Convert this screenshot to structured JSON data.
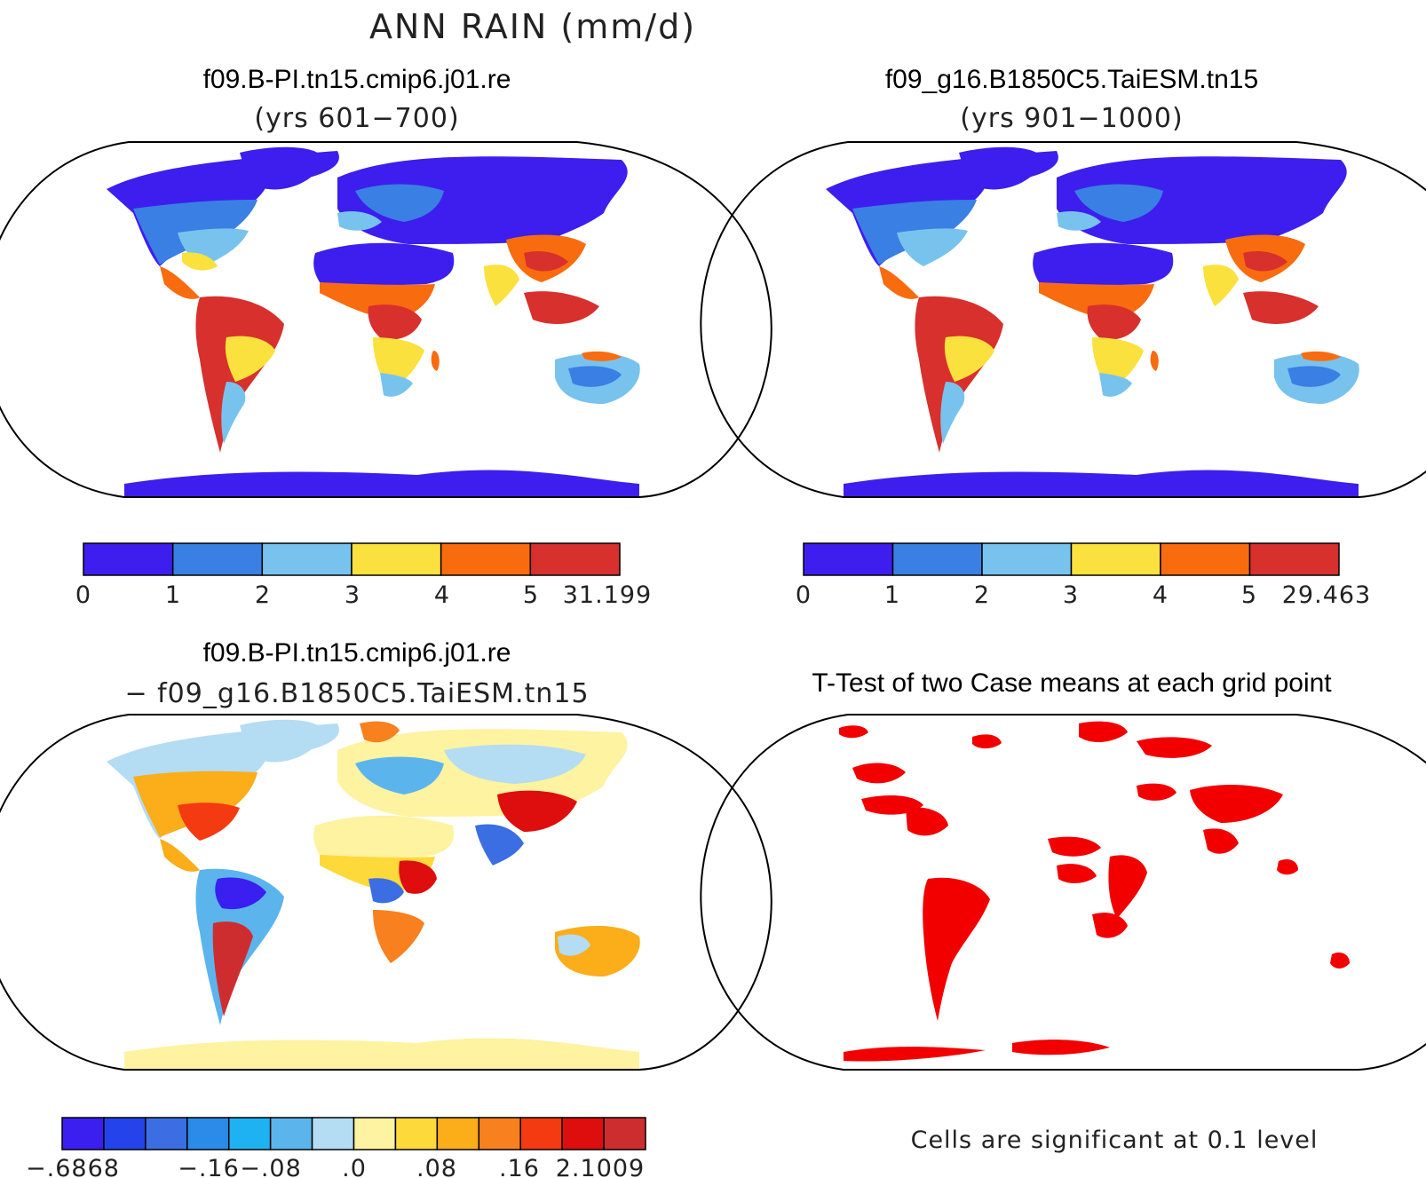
{
  "figure": {
    "title": "ANN RAIN (mm/d)"
  },
  "panels": [
    {
      "id": "case1",
      "title": "f09.B-PI.tn15.cmip6.j01.re",
      "subtitle": "(yrs 601−700)",
      "kind": "field",
      "colorbar": {
        "colors": [
          "#3d1eee",
          "#3a7fe3",
          "#78c3ee",
          "#fbe13d",
          "#f96b0f",
          "#d7302d"
        ],
        "labels": [
          "0",
          "1",
          "2",
          "3",
          "4",
          "5",
          "31.199"
        ]
      }
    },
    {
      "id": "case2",
      "title": "f09_g16.B1850C5.TaiESM.tn15",
      "subtitle": "(yrs 901−1000)",
      "kind": "field",
      "colorbar": {
        "colors": [
          "#3d1eee",
          "#3a7fe3",
          "#78c3ee",
          "#fbe13d",
          "#f96b0f",
          "#d7302d"
        ],
        "labels": [
          "0",
          "1",
          "2",
          "3",
          "4",
          "5",
          "29.463"
        ]
      }
    },
    {
      "id": "diff",
      "title": "f09.B-PI.tn15.cmip6.j01.re",
      "subtitle": "− f09_g16.B1850C5.TaiESM.tn15",
      "kind": "difference",
      "colorbar": {
        "colors": [
          "#3a1ff0",
          "#2443ea",
          "#3b6ee2",
          "#2a8be9",
          "#1eb2f2",
          "#5bb5ec",
          "#b4dcf3",
          "#fdf3a1",
          "#fed93a",
          "#fbad1a",
          "#f9801e",
          "#f33a10",
          "#de0e0e",
          "#ce2d30"
        ],
        "labels": [
          "−.6868",
          "−.16",
          "−.08",
          ".0",
          ".08",
          ".16",
          "2.1009"
        ]
      }
    },
    {
      "id": "ttest",
      "title": "T-Test of two Case means at each grid point",
      "kind": "ttest",
      "note": "Cells are significant at 0.1 level",
      "significant_color": "#f20000"
    }
  ]
}
